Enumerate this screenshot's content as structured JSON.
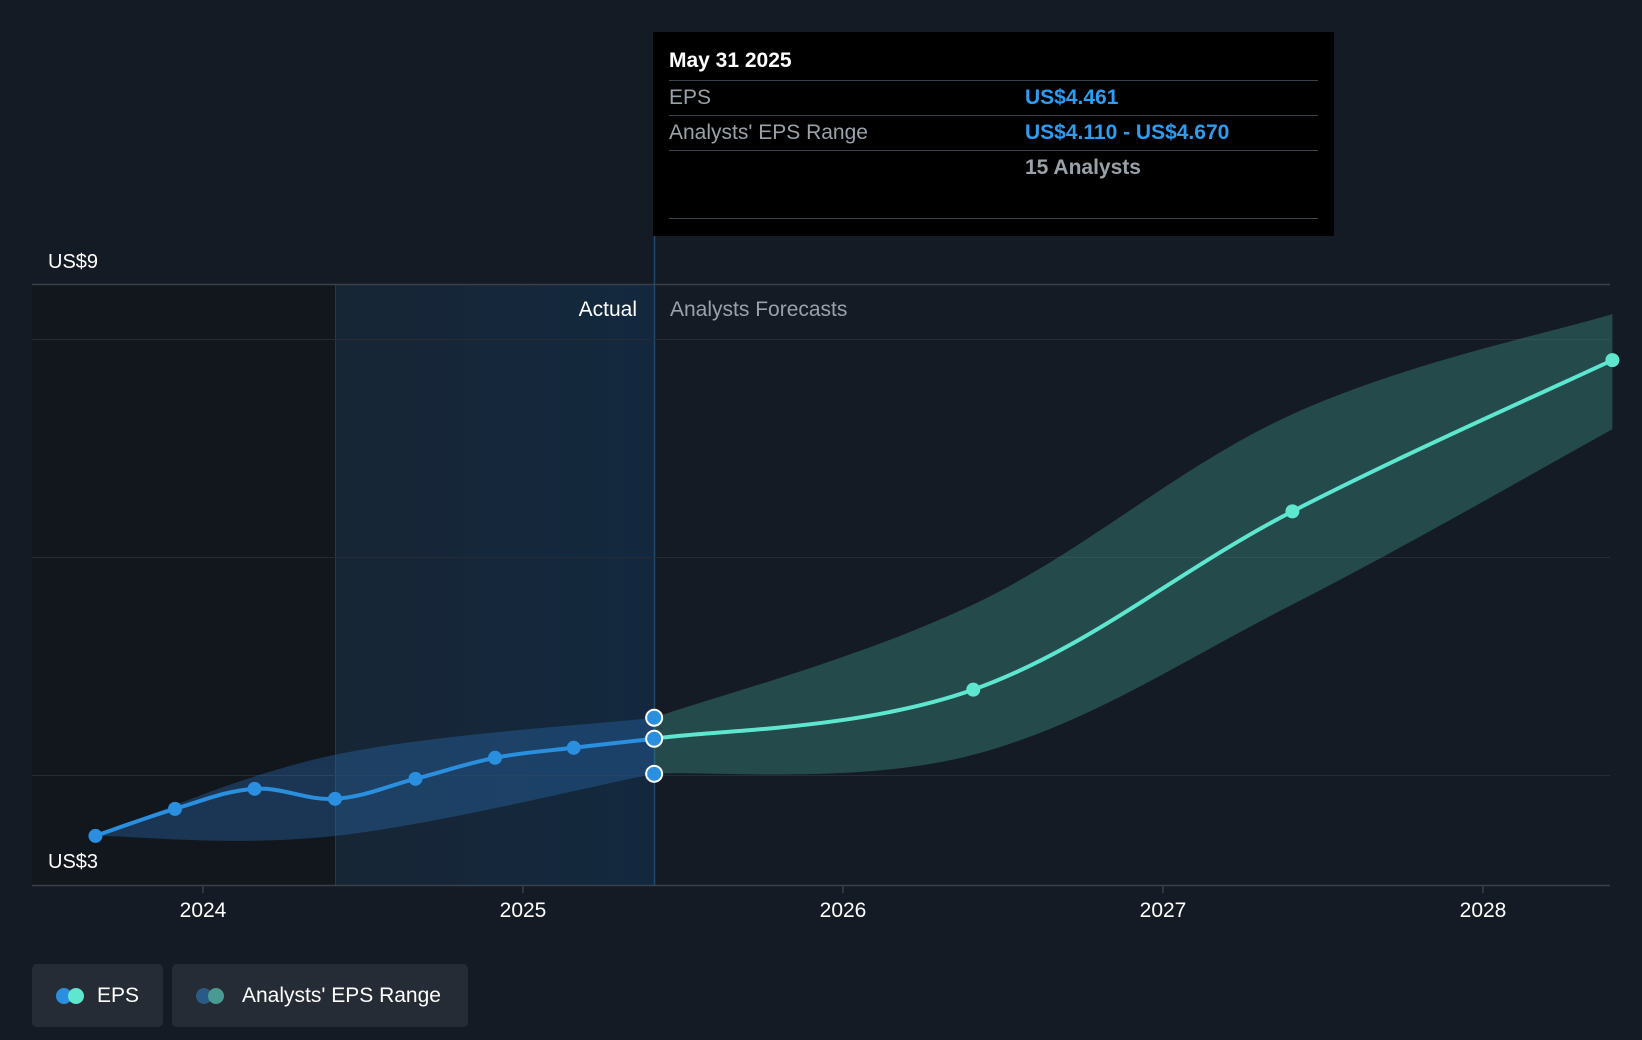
{
  "chart_data": {
    "type": "line",
    "y_axis": {
      "min_label": "US$3",
      "max_label": "US$9",
      "ylim": [
        3,
        9
      ]
    },
    "x_axis": {
      "ticks": [
        "2024",
        "2025",
        "2026",
        "2027",
        "2028"
      ]
    },
    "sections": {
      "actual_label": "Actual",
      "forecast_label": "Analysts Forecasts"
    },
    "series": [
      {
        "name": "EPS",
        "color": "#2b8fe0",
        "x": [
          "2023-08-31",
          "2023-11-30",
          "2024-02-29",
          "2024-05-31",
          "2024-08-31",
          "2024-11-30",
          "2025-02-28",
          "2025-05-31"
        ],
        "values": [
          3.49,
          3.76,
          3.96,
          3.86,
          4.06,
          4.27,
          4.37,
          4.46
        ]
      },
      {
        "name": "EPS Forecast",
        "color": "#5fe6cf",
        "x": [
          "2025-05-31",
          "2026-05-31",
          "2027-05-31",
          "2028-05-31"
        ],
        "values": [
          4.46,
          4.95,
          6.73,
          8.24
        ]
      }
    ],
    "range": {
      "name": "Analysts' EPS Range",
      "x": [
        "2023-08-31",
        "2024-05-31",
        "2025-05-31",
        "2026-05-31",
        "2027-05-31",
        "2028-05-31"
      ],
      "low": [
        3.49,
        3.49,
        4.11,
        4.3,
        5.8,
        7.55
      ],
      "high": [
        3.49,
        4.3,
        4.67,
        5.8,
        7.7,
        8.7
      ]
    },
    "tooltip": {
      "date": "May 31 2025",
      "rows": [
        {
          "label": "EPS",
          "value": "US$4.461"
        },
        {
          "label": "Analysts' EPS Range",
          "value": "US$4.110 - US$4.670"
        }
      ],
      "analysts": "15 Analysts"
    },
    "legend": [
      {
        "label": "EPS",
        "colors": [
          "#2b8fe0",
          "#5fe6cf"
        ]
      },
      {
        "label": "Analysts' EPS Range",
        "colors": [
          "#2a5b86",
          "#4a9a93"
        ]
      }
    ]
  }
}
